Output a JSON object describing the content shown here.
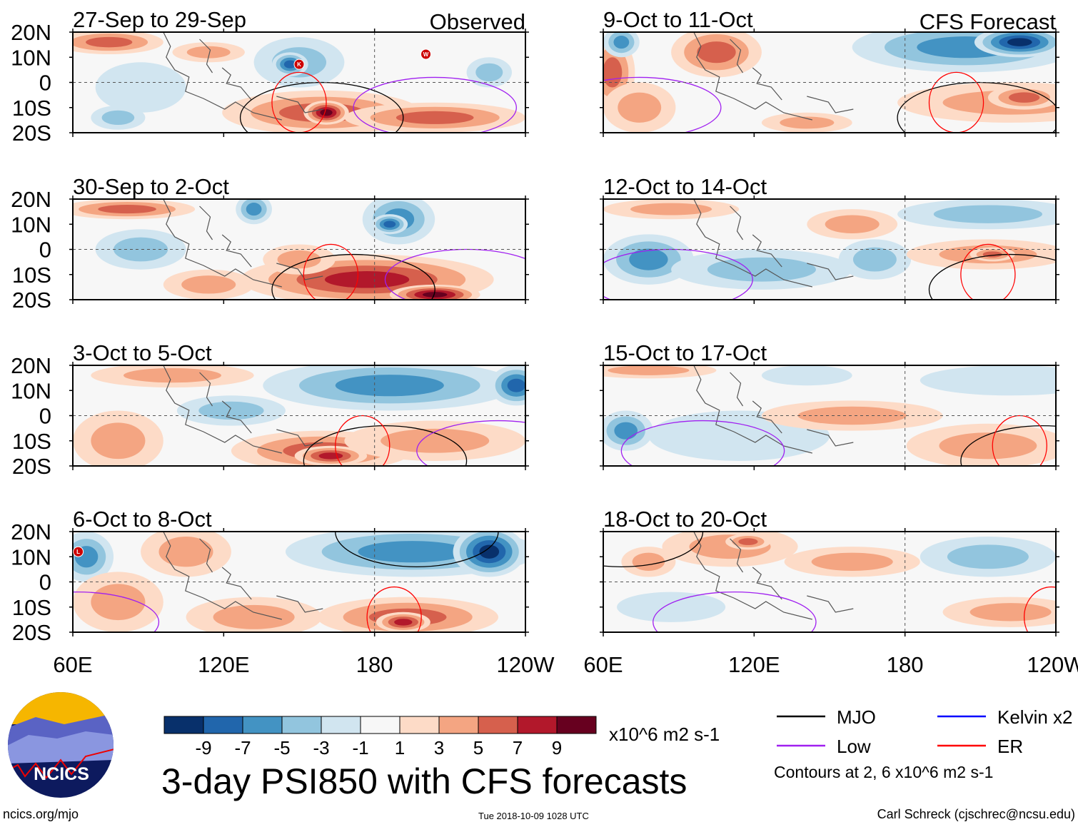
{
  "chart_data": {
    "type": "heatmap",
    "title": "3-day PSI850 with CFS forecasts",
    "variable": "850-hPa streamfunction anomaly",
    "units": "x10^6 m2 s-1",
    "xlim": [
      "60E",
      "120W"
    ],
    "ylim": [
      "20S",
      "20N"
    ],
    "x_ticks": [
      "60E",
      "120E",
      "180",
      "120W"
    ],
    "y_ticks": [
      "20N",
      "10N",
      "0",
      "10S",
      "20S"
    ],
    "colorbar": {
      "levels": [
        "-9",
        "-7",
        "-5",
        "-3",
        "-1",
        "1",
        "3",
        "5",
        "7",
        "9"
      ],
      "colors": [
        "#08306b",
        "#2166ac",
        "#4393c3",
        "#92c5de",
        "#d1e5f0",
        "#f7f7f7",
        "#fddbc7",
        "#f4a582",
        "#d6604d",
        "#b2182b",
        "#67001f"
      ]
    },
    "columns": [
      {
        "label": "Observed"
      },
      {
        "label": "CFS Forecast"
      }
    ],
    "panels": [
      {
        "title": "27-Sep to 29-Sep",
        "source": "Observed",
        "markers": [
          "K",
          "W"
        ]
      },
      {
        "title": "30-Sep to 2-Oct",
        "source": "Observed",
        "markers": []
      },
      {
        "title": "3-Oct to 5-Oct",
        "source": "Observed",
        "markers": []
      },
      {
        "title": "6-Oct to 8-Oct",
        "source": "Observed",
        "markers": [
          "L"
        ]
      },
      {
        "title": "9-Oct to 11-Oct",
        "source": "CFS Forecast",
        "markers": []
      },
      {
        "title": "12-Oct to 14-Oct",
        "source": "CFS Forecast",
        "markers": []
      },
      {
        "title": "15-Oct to 17-Oct",
        "source": "CFS Forecast",
        "markers": []
      },
      {
        "title": "18-Oct to 20-Oct",
        "source": "CFS Forecast",
        "markers": []
      }
    ],
    "legend": [
      {
        "label": "MJO",
        "color": "#000000"
      },
      {
        "label": "Kelvin x2",
        "color": "#0000ff"
      },
      {
        "label": "Low",
        "color": "#a020f0"
      },
      {
        "label": "ER",
        "color": "#ff0000"
      }
    ],
    "contour_note": "Contours at 2, 6 x10^6 m2 s-1"
  },
  "footer": {
    "logo": "NCICS",
    "url": "ncics.org/mjo",
    "timestamp": "Tue 2018-10-09 1028 UTC",
    "author": "Carl Schreck (cjschrec@ncsu.edu)"
  }
}
